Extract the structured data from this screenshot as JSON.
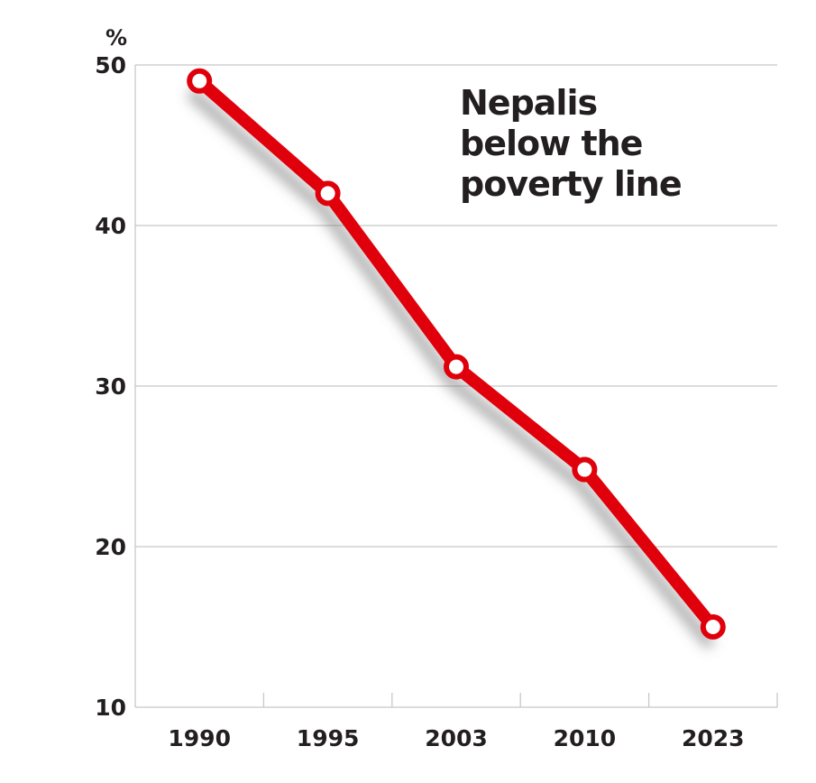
{
  "chart_data": {
    "type": "line",
    "title_lines": [
      "Nepalis",
      "below the",
      "poverty line"
    ],
    "ylabel": "%",
    "xlabel": "",
    "categories": [
      "1990",
      "1995",
      "2003",
      "2010",
      "2023"
    ],
    "series": [
      {
        "values": [
          49,
          42,
          31.2,
          24.8,
          15
        ]
      }
    ],
    "ylim": [
      10,
      50
    ],
    "yticks": [
      10,
      20,
      30,
      40,
      50
    ],
    "grid": true,
    "legend": "none",
    "colors": {
      "line": "#e0000b",
      "marker_fill": "#ffffff",
      "grid": "#c8c8c8",
      "text": "#231f20",
      "shadow": "#6d6e71"
    }
  }
}
